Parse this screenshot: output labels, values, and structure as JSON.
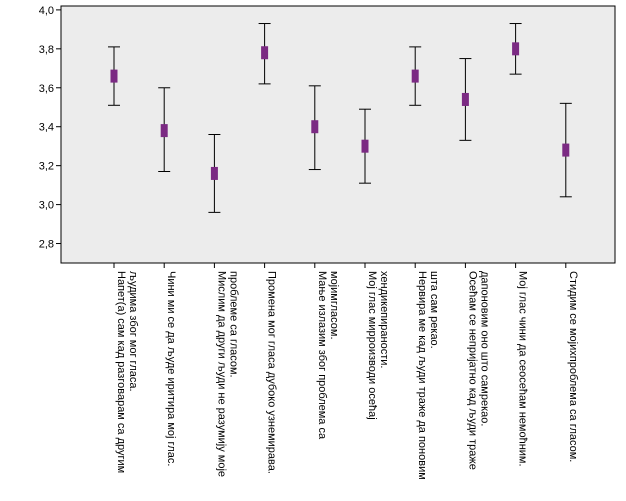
{
  "chart_data": {
    "type": "error-bar",
    "ylim": [
      2.7,
      4.02
    ],
    "y_ticks": [
      "2,8",
      "3,0",
      "3,2",
      "3,4",
      "3,6",
      "3,8",
      "4,0"
    ],
    "y_tick_values": [
      2.8,
      3.0,
      3.2,
      3.4,
      3.6,
      3.8,
      4.0
    ],
    "grid": false,
    "plot_background": "#ececec",
    "marker_color": "#7b2a83",
    "whisker_color": "#000000",
    "categories": [
      {
        "lines": [
          "Напет(а) сам кад разговарам са другим",
          "људима због мог гласа."
        ]
      },
      {
        "lines": [
          "Чини ми се да људе иритира мој глас."
        ]
      },
      {
        "lines": [
          "Мислим да други људи не разумију моје",
          "проблеме са гласом."
        ]
      },
      {
        "lines": [
          "Промена мог гласа дубоко узнемирава."
        ]
      },
      {
        "lines": [
          "Мање излазим због проблема са",
          "мојимгласом."
        ]
      },
      {
        "lines": [
          "Мој глас миpроизводи осећај",
          "хендикепираности."
        ]
      },
      {
        "lines": [
          "Нервира ме кад људи траже да поновим",
          "шта      сам рекао."
        ]
      },
      {
        "lines": [
          "Осећам се непријатно кад људи траже",
          "дапоновим оно што самрекао."
        ]
      },
      {
        "lines": [
          "Мој глас чини да сеосећам немоћним."
        ]
      },
      {
        "lines": [
          "Стидим се мојихпроблема са гласом."
        ]
      }
    ],
    "series": [
      {
        "mean": [
          3.66,
          3.38,
          3.16,
          3.78,
          3.4,
          3.3,
          3.66,
          3.54,
          3.8,
          3.28
        ],
        "lower": [
          3.51,
          3.17,
          2.96,
          3.62,
          3.18,
          3.11,
          3.51,
          3.33,
          3.67,
          3.04
        ],
        "upper": [
          3.81,
          3.6,
          3.36,
          3.93,
          3.61,
          3.49,
          3.81,
          3.75,
          3.93,
          3.52
        ]
      }
    ]
  }
}
